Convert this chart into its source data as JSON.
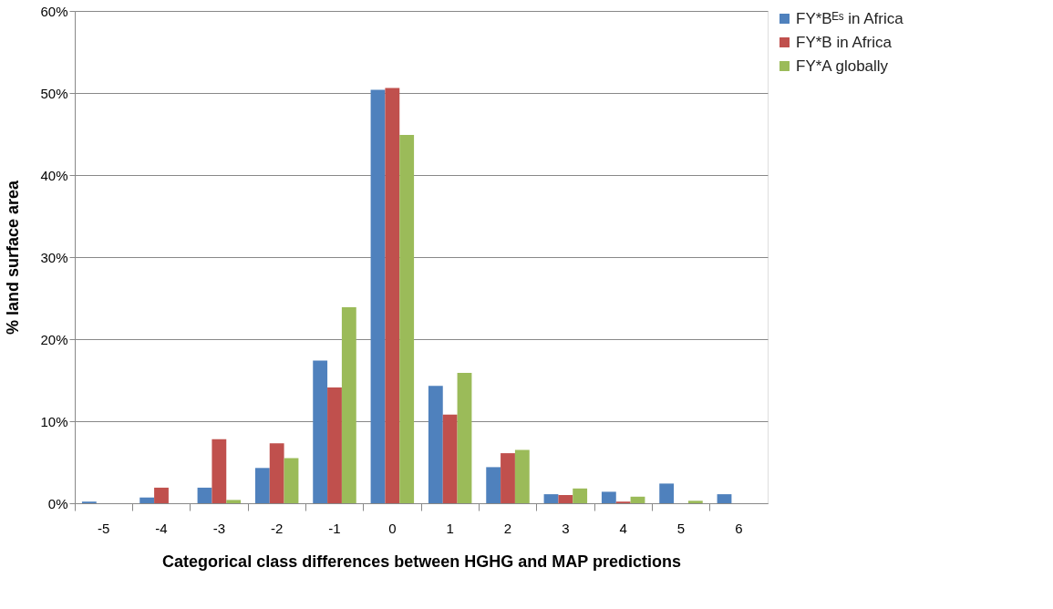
{
  "chart_data": {
    "type": "bar",
    "xlabel": "Categorical class differences between HGHG and MAP predictions",
    "ylabel": "% land surface area",
    "categories": [
      "-5",
      "-4",
      "-3",
      "-2",
      "-1",
      "0",
      "1",
      "2",
      "3",
      "4",
      "5",
      "6"
    ],
    "series": [
      {
        "name": "FY*Bᴱˢ in Africa",
        "color": "#4f81bd",
        "values": [
          0.2,
          0.7,
          1.9,
          4.3,
          17.4,
          50.4,
          14.3,
          4.4,
          1.1,
          1.4,
          2.4,
          1.1
        ]
      },
      {
        "name": "FY*B  in Africa",
        "color": "#c0504d",
        "values": [
          0,
          1.9,
          7.8,
          7.3,
          14.1,
          50.6,
          10.8,
          6.1,
          1.0,
          0.2,
          0,
          0
        ]
      },
      {
        "name": "FY*A  globally",
        "color": "#9bbb59",
        "values": [
          0,
          0,
          0.4,
          5.5,
          23.9,
          44.9,
          15.9,
          6.5,
          1.8,
          0.8,
          0.3,
          0
        ]
      }
    ],
    "ylim": [
      0,
      60
    ],
    "yticks": [
      {
        "value": 0,
        "label": "0%"
      },
      {
        "value": 10,
        "label": "10%"
      },
      {
        "value": 20,
        "label": "20%"
      },
      {
        "value": 30,
        "label": "30%"
      },
      {
        "value": 40,
        "label": "40%"
      },
      {
        "value": 50,
        "label": "50%"
      },
      {
        "value": 60,
        "label": "60%"
      }
    ],
    "grid": "y",
    "legend": "right"
  }
}
